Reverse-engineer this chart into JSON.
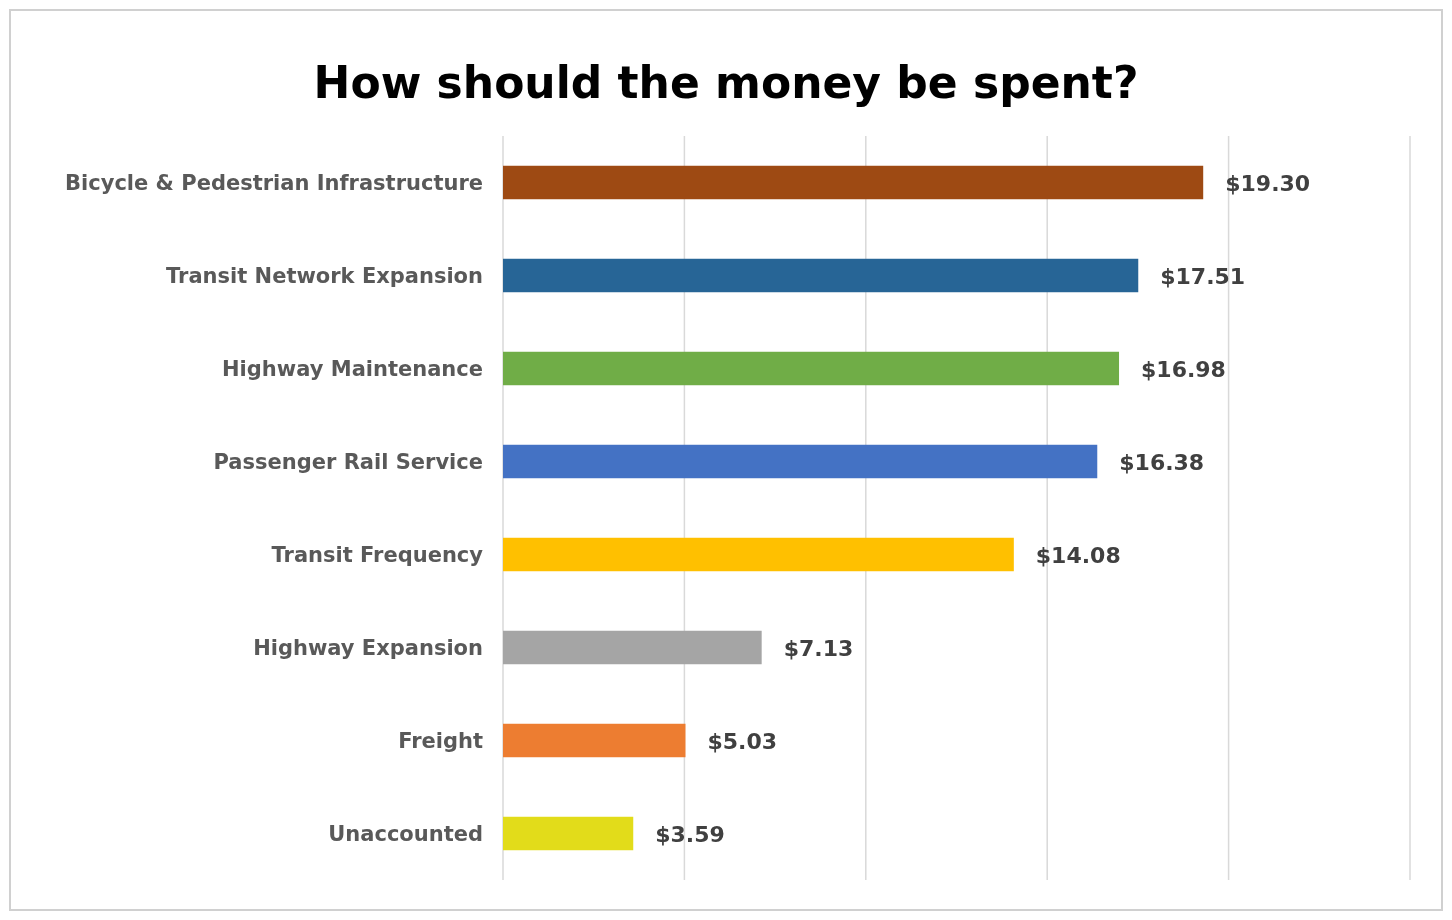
{
  "chart_data": {
    "type": "bar",
    "orientation": "horizontal",
    "title": "How should the money be spent?",
    "categories": [
      "Bicycle & Pedestrian Infrastructure",
      "Transit Network Expansion",
      "Highway Maintenance",
      "Passenger Rail Service",
      "Transit Frequency",
      "Highway Expansion",
      "Freight",
      "Unaccounted"
    ],
    "values": [
      19.3,
      17.51,
      16.98,
      16.38,
      14.08,
      7.13,
      5.03,
      3.59
    ],
    "colors": [
      "#9e4a13",
      "#276596",
      "#70ad47",
      "#4472c4",
      "#ffc000",
      "#a5a5a5",
      "#ed7d31",
      "#e2dc1a"
    ],
    "value_labels": [
      "$19.30",
      "$17.51",
      "$16.98",
      "$16.38",
      "$14.08",
      "$7.13",
      "$5.03",
      "$3.59"
    ],
    "xlim": [
      0,
      25
    ],
    "xticks": [
      {
        "value": 0,
        "label": null
      },
      {
        "value": 5,
        "label": null
      },
      {
        "value": 10,
        "label": null
      },
      {
        "value": 15,
        "label": null
      },
      {
        "value": 20,
        "label": null
      },
      {
        "value": 25,
        "label": null
      }
    ],
    "grid": "x",
    "tick_labels": "y"
  }
}
